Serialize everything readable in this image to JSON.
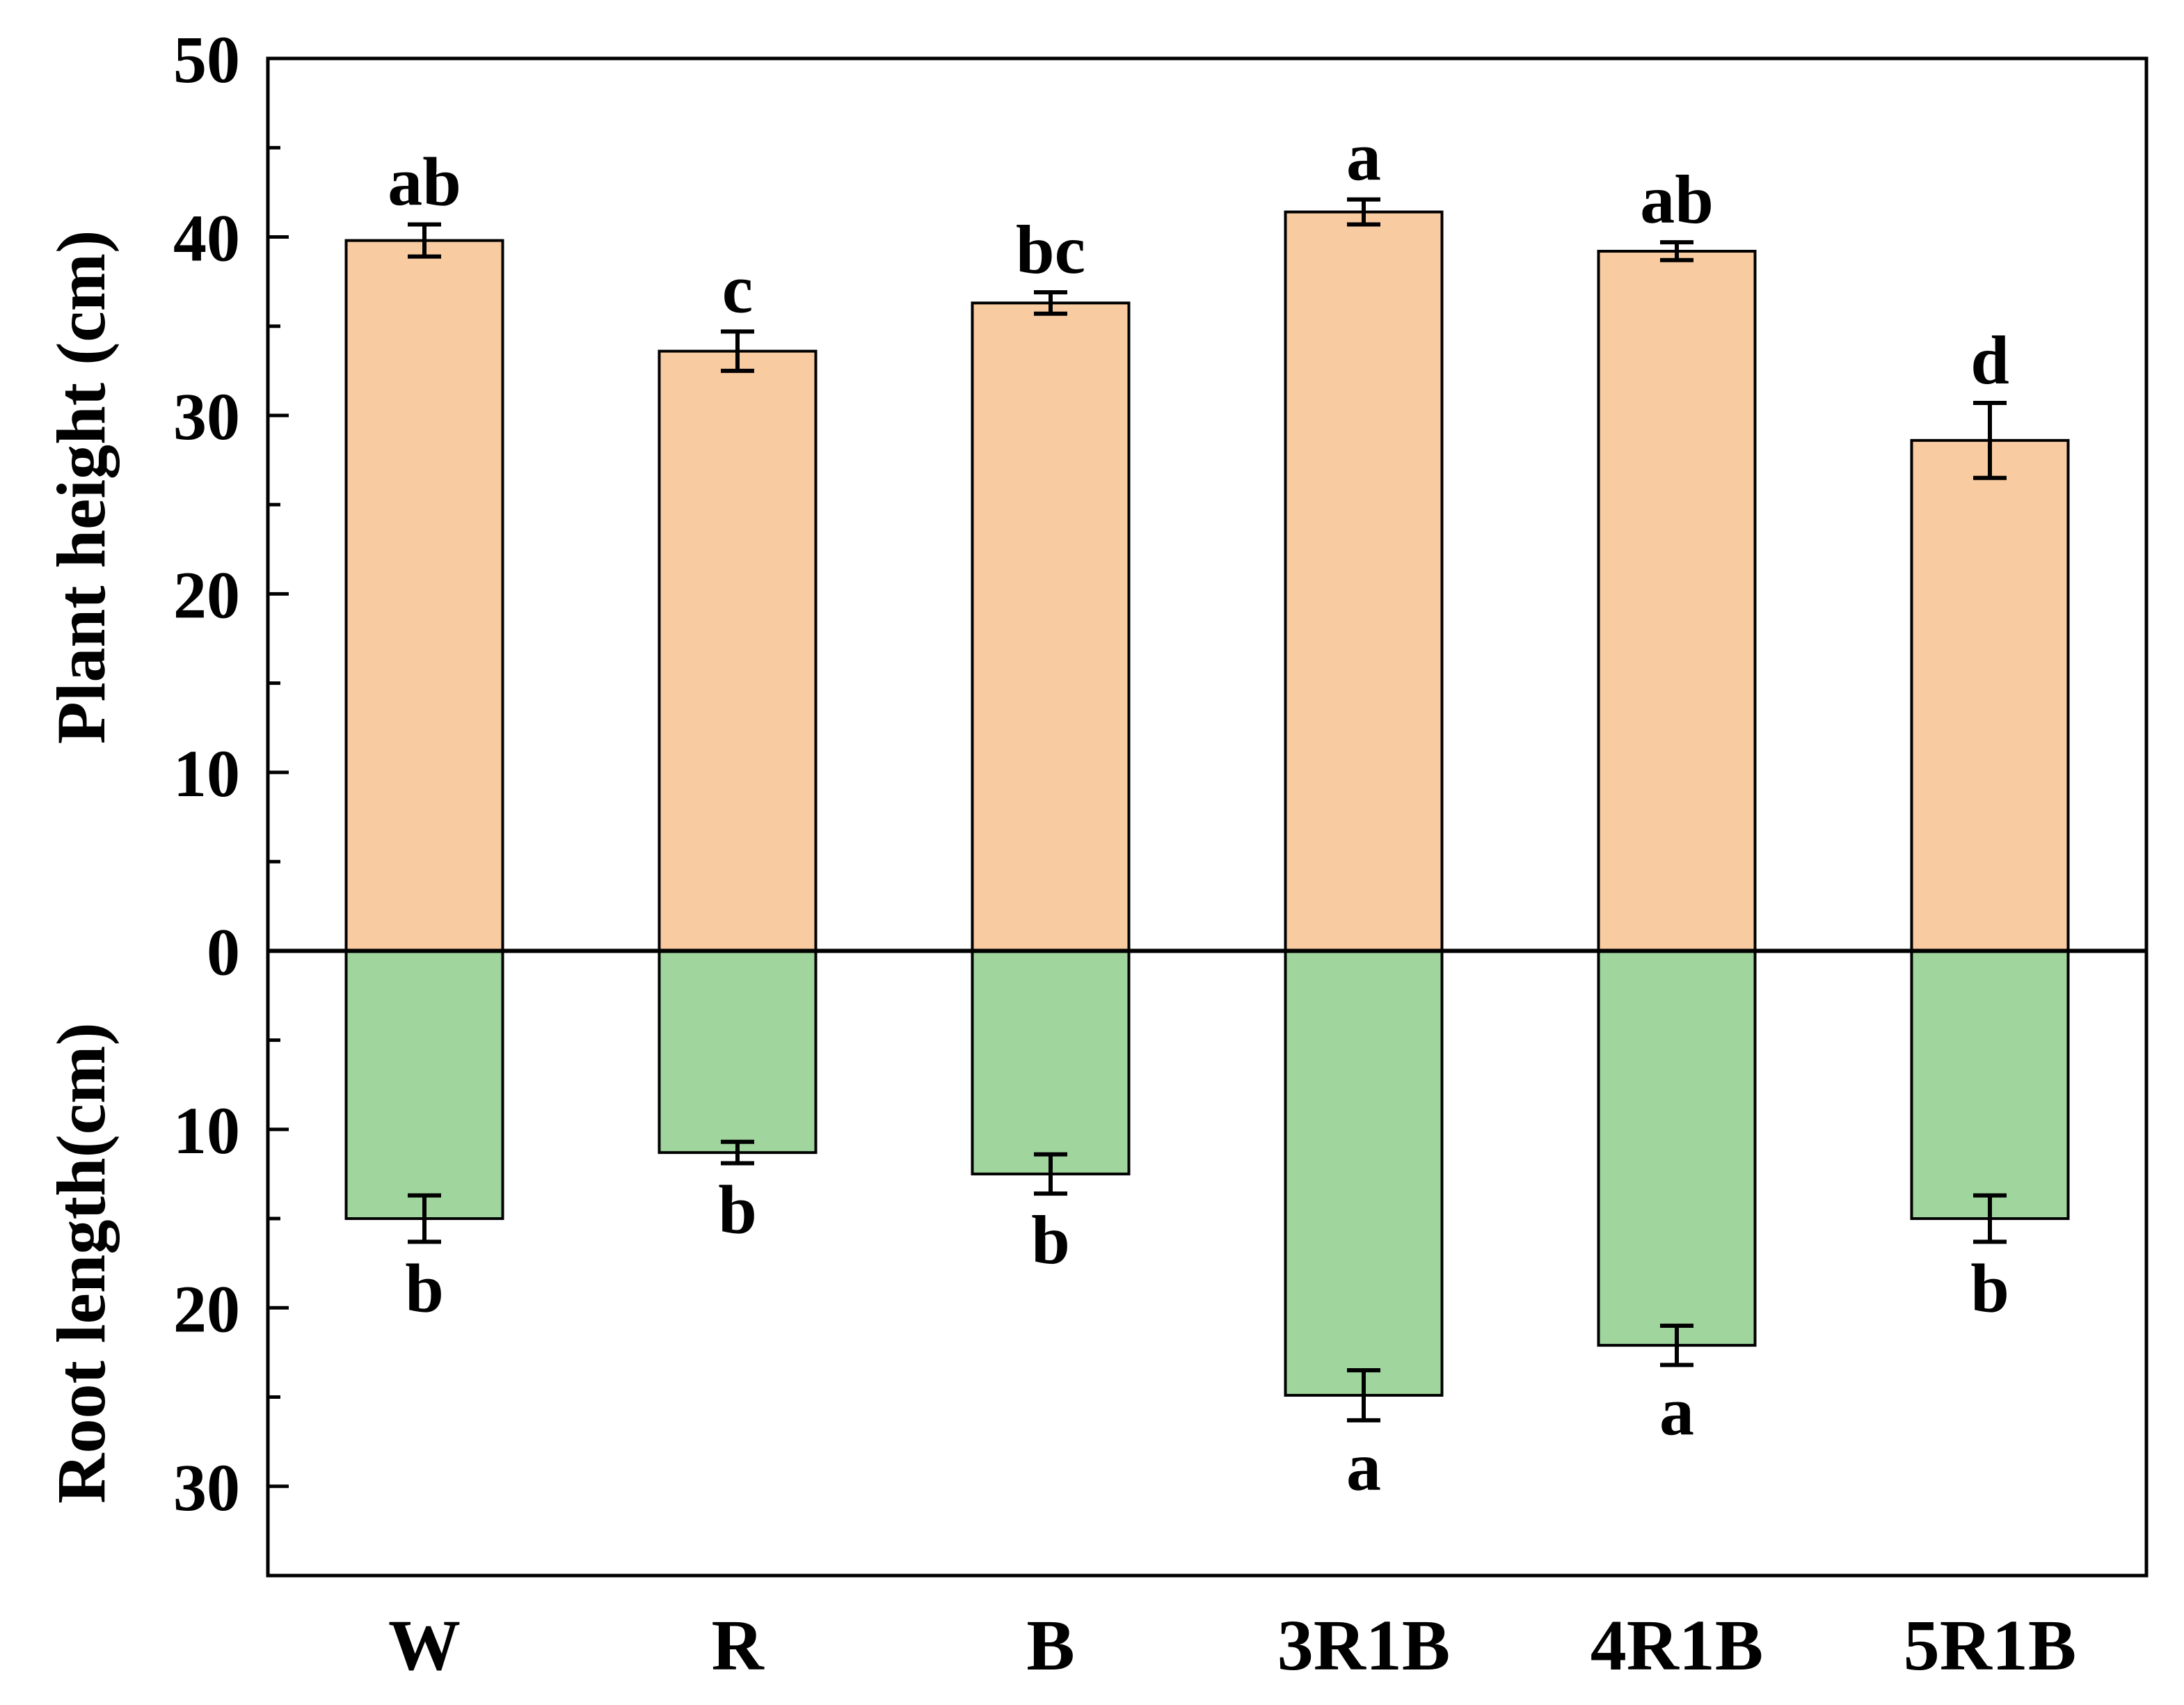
{
  "chart_data": {
    "type": "bar",
    "title": "",
    "categories": [
      "W",
      "R",
      "B",
      "3R1B",
      "4R1B",
      "5R1B"
    ],
    "y_upper_label": "Plant height (cm)",
    "y_lower_label": "Root length(cm)",
    "ylim": [
      -35,
      50
    ],
    "yticks_upper": [
      "0",
      "10",
      "20",
      "30",
      "40",
      "50"
    ],
    "yticks_lower": [
      "10",
      "20",
      "30"
    ],
    "grid": false,
    "colors": {
      "plant_height": "#F9CBA1",
      "root_length": "#A0D69E"
    },
    "series": [
      {
        "name": "Plant height (cm)",
        "values": [
          39.8,
          33.6,
          36.3,
          41.4,
          39.2,
          28.6
        ],
        "errors": [
          0.9,
          1.1,
          0.6,
          0.7,
          0.5,
          2.1
        ],
        "letters": [
          "ab",
          "c",
          "bc",
          "a",
          "ab",
          "d"
        ]
      },
      {
        "name": "Root length(cm)",
        "values": [
          15.0,
          11.3,
          12.5,
          24.9,
          22.1,
          15.0
        ],
        "errors": [
          1.3,
          0.6,
          1.1,
          1.4,
          1.1,
          1.3
        ],
        "letters": [
          "b",
          "b",
          "b",
          "a",
          "a",
          "b"
        ]
      }
    ]
  }
}
